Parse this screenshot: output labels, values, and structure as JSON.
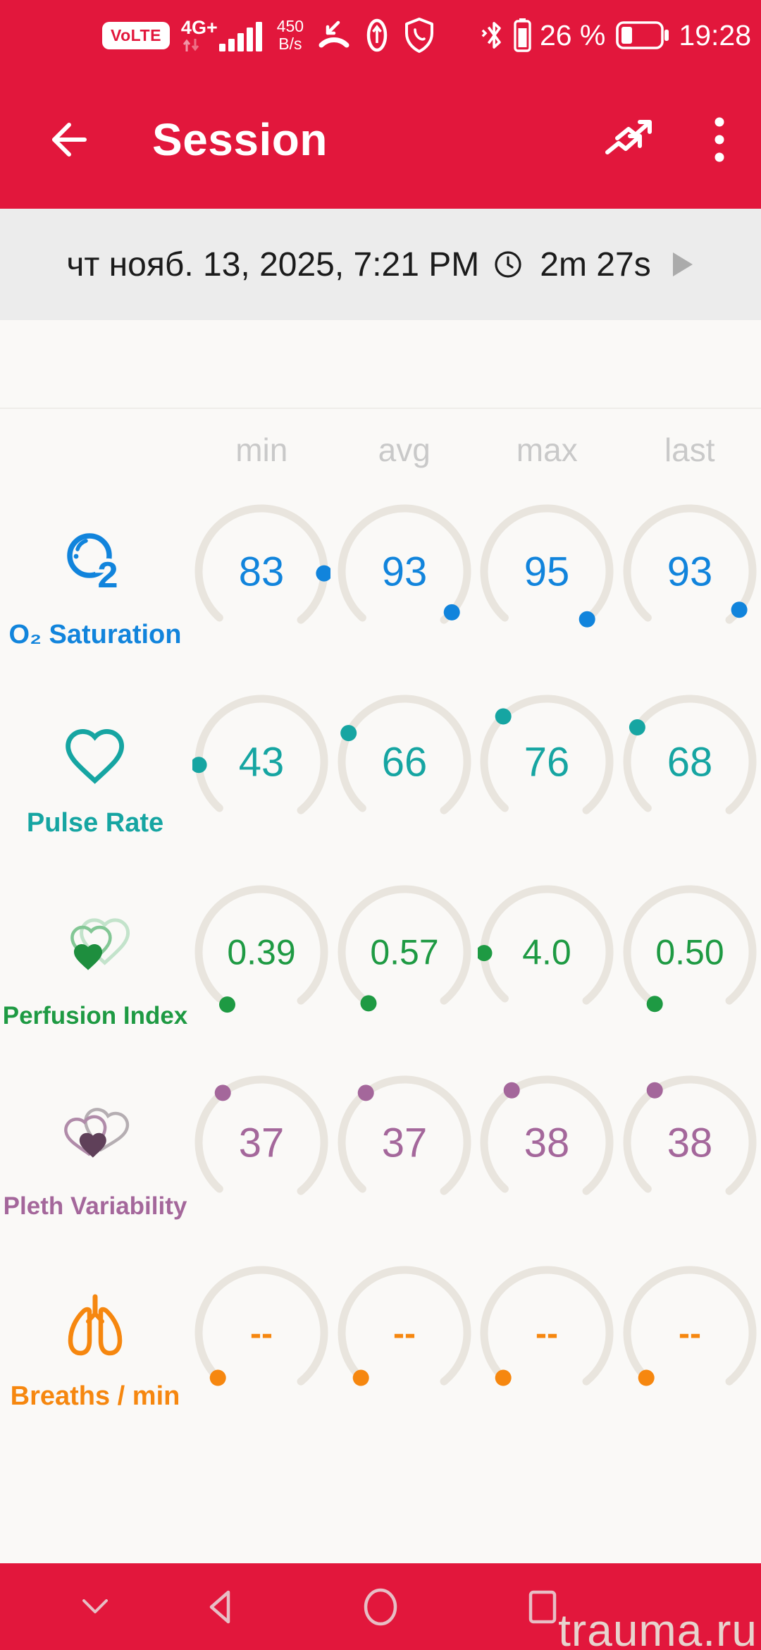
{
  "colors": {
    "app_red": "#E2173C",
    "arc": "#E9E5DE",
    "arc_rim": "#E0D5BF",
    "header_gray": "#C9C9C9",
    "session_bar_bg": "#ECECEC",
    "content_bg": "#FAF9F7",
    "nav_icon": "#E8D6D8",
    "watermark_color": "#E8DED5"
  },
  "status_bar": {
    "volte_label": "VoLTE",
    "network_label": "4G+",
    "net_speed_value": "450",
    "net_speed_unit": "B/s",
    "bt_battery_percent": "26 %",
    "battery_level": 0.26,
    "time": "19:28"
  },
  "app_bar": {
    "title": "Session"
  },
  "session_bar": {
    "datetime": "чт нояб. 13, 2025, 7:21 PM",
    "duration": "2m 27s"
  },
  "table": {
    "headers": [
      "min",
      "avg",
      "max",
      "last"
    ],
    "rows": [
      {
        "id": "o2",
        "label": "O₂ Saturation",
        "color": "#1184DC",
        "icon": "o2-bubble-icon",
        "cells": [
          {
            "value": "83",
            "dot_angle": 92
          },
          {
            "value": "93",
            "dot_angle": 131
          },
          {
            "value": "95",
            "dot_angle": 140
          },
          {
            "value": "93",
            "dot_angle": 128
          }
        ]
      },
      {
        "id": "pulse",
        "label": "Pulse Rate",
        "color": "#16A5A2",
        "icon": "heart-icon",
        "cells": [
          {
            "value": "43",
            "dot_angle": 267
          },
          {
            "value": "66",
            "dot_angle": 297
          },
          {
            "value": "76",
            "dot_angle": 316
          },
          {
            "value": "68",
            "dot_angle": 303
          }
        ]
      },
      {
        "id": "perfusion",
        "label": "Perfusion Index",
        "color": "#1E9A43",
        "icon": "nested-hearts-icon",
        "icon_palette": [
          "#C3E3CB",
          "#83C795",
          "#1E8E3E"
        ],
        "cells": [
          {
            "value": "0.39",
            "dot_angle": 213
          },
          {
            "value": "0.57",
            "dot_angle": 215
          },
          {
            "value": "4.0",
            "dot_angle": 269
          },
          {
            "value": "0.50",
            "dot_angle": 214
          }
        ]
      },
      {
        "id": "pleth",
        "label": "Pleth Variability",
        "color": "#A4679B",
        "icon": "overlap-hearts-icon",
        "icon_palette": [
          "#B5AEB2",
          "#B08BA9",
          "#5F4059"
        ],
        "cells": [
          {
            "value": "37",
            "dot_angle": 322
          },
          {
            "value": "37",
            "dot_angle": 322
          },
          {
            "value": "38",
            "dot_angle": 326
          },
          {
            "value": "38",
            "dot_angle": 326
          }
        ]
      },
      {
        "id": "breaths",
        "label": "Breaths / min",
        "color": "#F6870F",
        "icon": "lungs-icon",
        "cells": [
          {
            "value": "--",
            "dot_angle": 224
          },
          {
            "value": "--",
            "dot_angle": 224
          },
          {
            "value": "--",
            "dot_angle": 224
          },
          {
            "value": "--",
            "dot_angle": 224
          }
        ]
      }
    ]
  },
  "nav_bar": {
    "watermark": "trauma.ru"
  }
}
